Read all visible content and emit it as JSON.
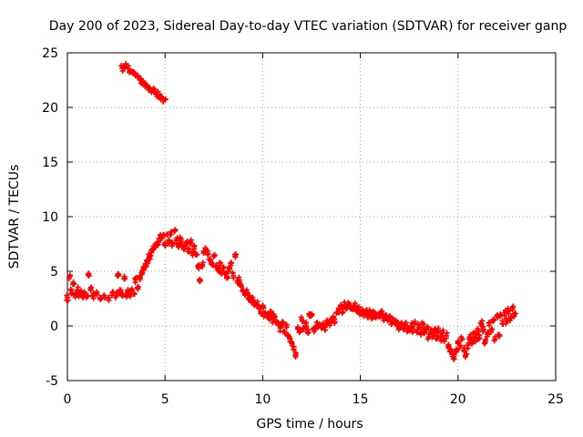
{
  "chart_data": {
    "type": "scatter",
    "title": "Day 200 of 2023, Sidereal Day-to-day VTEC variation (SDTVAR) for receiver ganp",
    "xlabel": "GPS time / hours",
    "ylabel": "SDTVAR / TECUs",
    "xlim": [
      0,
      25
    ],
    "ylim": [
      -5,
      25
    ],
    "xticks": [
      0,
      5,
      10,
      15,
      20,
      25
    ],
    "yticks": [
      -5,
      0,
      5,
      10,
      15,
      20,
      25
    ],
    "xtick_labels": [
      "0",
      "5",
      "10",
      "15",
      "20",
      "25"
    ],
    "ytick_labels": [
      "-5",
      "0",
      "5",
      "10",
      "15",
      "20",
      "25"
    ],
    "grid": true,
    "marker": "+",
    "series_color": "#ff0000",
    "series": [
      {
        "name": "main track",
        "points": [
          [
            0.0,
            2.6
          ],
          [
            0.1,
            4.5
          ],
          [
            0.2,
            3.2
          ],
          [
            0.3,
            4.0
          ],
          [
            0.4,
            2.8
          ],
          [
            0.5,
            3.3
          ],
          [
            0.6,
            2.9
          ],
          [
            0.7,
            3.1
          ],
          [
            0.8,
            2.6
          ],
          [
            0.9,
            3.0
          ],
          [
            1.0,
            2.8
          ],
          [
            1.1,
            4.8
          ],
          [
            1.2,
            3.5
          ],
          [
            1.3,
            2.7
          ],
          [
            1.5,
            3.0
          ],
          [
            1.7,
            2.5
          ],
          [
            1.9,
            2.8
          ],
          [
            2.1,
            2.6
          ],
          [
            2.3,
            3.0
          ],
          [
            2.5,
            2.8
          ],
          [
            2.6,
            4.6
          ],
          [
            2.7,
            3.2
          ],
          [
            2.8,
            2.9
          ],
          [
            2.9,
            4.3
          ],
          [
            3.0,
            2.8
          ],
          [
            3.1,
            3.2
          ],
          [
            3.2,
            2.7
          ],
          [
            3.3,
            3.4
          ],
          [
            3.4,
            3.0
          ],
          [
            3.5,
            4.2
          ],
          [
            3.6,
            3.5
          ],
          [
            3.7,
            4.5
          ],
          [
            3.8,
            4.9
          ],
          [
            3.9,
            5.2
          ],
          [
            4.0,
            5.6
          ],
          [
            4.1,
            5.9
          ],
          [
            4.2,
            6.3
          ],
          [
            4.3,
            6.7
          ],
          [
            4.4,
            7.1
          ],
          [
            4.5,
            7.4
          ],
          [
            4.6,
            7.6
          ],
          [
            4.7,
            7.8
          ],
          [
            4.8,
            8.1
          ],
          [
            4.9,
            8.3
          ],
          [
            5.0,
            7.6
          ],
          [
            5.1,
            8.4
          ],
          [
            5.2,
            7.7
          ],
          [
            5.3,
            8.6
          ],
          [
            5.4,
            7.5
          ],
          [
            5.5,
            8.7
          ],
          [
            5.6,
            7.8
          ],
          [
            5.7,
            7.3
          ],
          [
            5.8,
            8.0
          ],
          [
            5.9,
            7.4
          ],
          [
            6.0,
            7.1
          ],
          [
            6.1,
            7.6
          ],
          [
            6.2,
            7.0
          ],
          [
            6.3,
            7.6
          ],
          [
            6.4,
            6.7
          ],
          [
            6.5,
            7.3
          ],
          [
            6.6,
            6.5
          ],
          [
            6.7,
            5.4
          ],
          [
            6.8,
            4.2
          ],
          [
            6.9,
            5.6
          ],
          [
            7.0,
            6.8
          ],
          [
            7.1,
            7.0
          ],
          [
            7.2,
            6.6
          ],
          [
            7.3,
            6.1
          ],
          [
            7.4,
            5.8
          ],
          [
            7.5,
            6.4
          ],
          [
            7.6,
            5.5
          ],
          [
            7.7,
            5.1
          ],
          [
            7.8,
            5.8
          ],
          [
            7.9,
            4.9
          ],
          [
            8.0,
            5.4
          ],
          [
            8.1,
            4.8
          ],
          [
            8.2,
            4.4
          ],
          [
            8.3,
            5.2
          ],
          [
            8.4,
            5.8
          ],
          [
            8.5,
            4.6
          ],
          [
            8.6,
            6.3
          ],
          [
            8.7,
            4.1
          ],
          [
            8.8,
            4.2
          ],
          [
            8.9,
            3.6
          ],
          [
            9.0,
            3.3
          ],
          [
            9.1,
            2.9
          ],
          [
            9.2,
            3.1
          ],
          [
            9.3,
            2.6
          ],
          [
            9.4,
            2.2
          ],
          [
            9.5,
            2.4
          ],
          [
            9.6,
            1.9
          ],
          [
            9.7,
            2.0
          ],
          [
            9.8,
            1.6
          ],
          [
            9.9,
            1.3
          ],
          [
            10.0,
            1.8
          ],
          [
            10.1,
            1.0
          ],
          [
            10.2,
            0.9
          ],
          [
            10.3,
            0.7
          ],
          [
            10.4,
            1.2
          ],
          [
            10.5,
            0.5
          ],
          [
            10.6,
            0.9
          ],
          [
            10.7,
            0.4
          ],
          [
            10.8,
            0.1
          ],
          [
            10.9,
            -0.2
          ],
          [
            11.0,
            0.3
          ],
          [
            11.1,
            -0.5
          ],
          [
            11.2,
            -0.1
          ],
          [
            11.3,
            -0.8
          ],
          [
            11.4,
            -1.2
          ],
          [
            11.5,
            -1.6
          ],
          [
            11.6,
            -1.9
          ],
          [
            11.7,
            -2.6
          ],
          [
            11.8,
            -0.1
          ],
          [
            11.9,
            -0.5
          ],
          [
            12.0,
            0.6
          ],
          [
            12.1,
            -0.3
          ],
          [
            12.2,
            0.2
          ],
          [
            12.3,
            -0.4
          ],
          [
            12.4,
            0.9
          ],
          [
            12.5,
            1.1
          ],
          [
            12.6,
            -0.3
          ],
          [
            12.7,
            -0.1
          ],
          [
            12.8,
            0.1
          ],
          [
            12.9,
            0.0
          ],
          [
            13.0,
            -0.2
          ],
          [
            13.1,
            0.1
          ],
          [
            13.2,
            -0.1
          ],
          [
            13.3,
            0.3
          ],
          [
            13.4,
            0.2
          ],
          [
            13.5,
            0.5
          ],
          [
            13.6,
            0.8
          ],
          [
            13.7,
            0.4
          ],
          [
            13.8,
            1.2
          ],
          [
            13.9,
            1.5
          ],
          [
            14.0,
            1.7
          ],
          [
            14.1,
            1.3
          ],
          [
            14.2,
            1.9
          ],
          [
            14.3,
            1.8
          ],
          [
            14.4,
            2.0
          ],
          [
            14.5,
            1.8
          ],
          [
            14.6,
            1.6
          ],
          [
            14.7,
            1.9
          ],
          [
            14.8,
            1.4
          ],
          [
            14.9,
            1.5
          ],
          [
            15.0,
            1.2
          ],
          [
            15.1,
            1.4
          ],
          [
            15.2,
            1.1
          ],
          [
            15.3,
            1.3
          ],
          [
            15.4,
            1.0
          ],
          [
            15.5,
            1.2
          ],
          [
            15.6,
            0.9
          ],
          [
            15.7,
            1.1
          ],
          [
            15.8,
            0.8
          ],
          [
            15.9,
            1.0
          ],
          [
            16.0,
            0.9
          ],
          [
            16.1,
            1.1
          ],
          [
            16.2,
            0.7
          ],
          [
            16.3,
            0.9
          ],
          [
            16.4,
            0.6
          ],
          [
            16.5,
            0.8
          ],
          [
            16.6,
            0.4
          ],
          [
            16.7,
            0.6
          ],
          [
            16.8,
            0.3
          ],
          [
            16.9,
            0.2
          ],
          [
            17.0,
            -0.1
          ],
          [
            17.1,
            0.3
          ],
          [
            17.2,
            -0.3
          ],
          [
            17.3,
            0.1
          ],
          [
            17.4,
            -0.5
          ],
          [
            17.5,
            -0.2
          ],
          [
            17.6,
            0.0
          ],
          [
            17.7,
            -0.4
          ],
          [
            17.8,
            0.2
          ],
          [
            17.9,
            -0.6
          ],
          [
            18.0,
            -0.1
          ],
          [
            18.1,
            -0.8
          ],
          [
            18.2,
            0.1
          ],
          [
            18.3,
            -0.6
          ],
          [
            18.4,
            -0.3
          ],
          [
            18.5,
            -1.0
          ],
          [
            18.6,
            -0.4
          ],
          [
            18.7,
            -0.8
          ],
          [
            18.8,
            -0.5
          ],
          [
            18.9,
            -0.9
          ],
          [
            19.0,
            -0.4
          ],
          [
            19.1,
            -1.2
          ],
          [
            19.2,
            -0.6
          ],
          [
            19.3,
            -1.4
          ],
          [
            19.4,
            -0.9
          ],
          [
            19.5,
            -1.9
          ],
          [
            19.6,
            -2.3
          ],
          [
            19.7,
            -2.6
          ],
          [
            19.8,
            -2.8
          ],
          [
            19.9,
            -2.4
          ],
          [
            20.0,
            -1.5
          ],
          [
            20.1,
            -2.0
          ],
          [
            20.2,
            -1.2
          ],
          [
            20.3,
            -2.2
          ],
          [
            20.4,
            -2.6
          ],
          [
            20.5,
            -1.8
          ],
          [
            20.6,
            -1.0
          ],
          [
            20.7,
            -1.4
          ],
          [
            20.8,
            -0.8
          ],
          [
            20.9,
            -1.3
          ],
          [
            21.0,
            -0.5
          ],
          [
            21.1,
            -1.1
          ],
          [
            21.2,
            0.2
          ],
          [
            21.3,
            -0.3
          ],
          [
            21.4,
            -1.4
          ],
          [
            21.5,
            -0.7
          ],
          [
            21.6,
            0.3
          ],
          [
            21.7,
            -0.4
          ],
          [
            21.8,
            0.6
          ],
          [
            21.9,
            -1.2
          ],
          [
            22.0,
            0.9
          ],
          [
            22.1,
            -0.9
          ],
          [
            22.2,
            1.0
          ],
          [
            22.3,
            0.2
          ],
          [
            22.4,
            1.2
          ],
          [
            22.5,
            0.4
          ],
          [
            22.6,
            1.4
          ],
          [
            22.7,
            0.7
          ],
          [
            22.8,
            1.7
          ],
          [
            22.9,
            1.1
          ]
        ]
      },
      {
        "name": "upper segment",
        "points": [
          [
            2.8,
            23.6
          ],
          [
            2.9,
            23.7
          ],
          [
            3.0,
            23.8
          ],
          [
            3.1,
            23.6
          ],
          [
            3.2,
            23.4
          ],
          [
            3.3,
            23.3
          ],
          [
            3.4,
            23.1
          ],
          [
            3.5,
            22.9
          ],
          [
            3.6,
            22.8
          ],
          [
            3.7,
            22.6
          ],
          [
            3.8,
            22.4
          ],
          [
            3.9,
            22.3
          ],
          [
            4.0,
            22.1
          ],
          [
            4.1,
            21.9
          ],
          [
            4.2,
            21.8
          ],
          [
            4.3,
            21.6
          ],
          [
            4.4,
            21.5
          ],
          [
            4.5,
            21.4
          ],
          [
            4.6,
            21.2
          ],
          [
            4.7,
            21.0
          ],
          [
            4.8,
            20.9
          ],
          [
            4.9,
            20.8
          ],
          [
            5.0,
            20.7
          ]
        ]
      }
    ]
  }
}
